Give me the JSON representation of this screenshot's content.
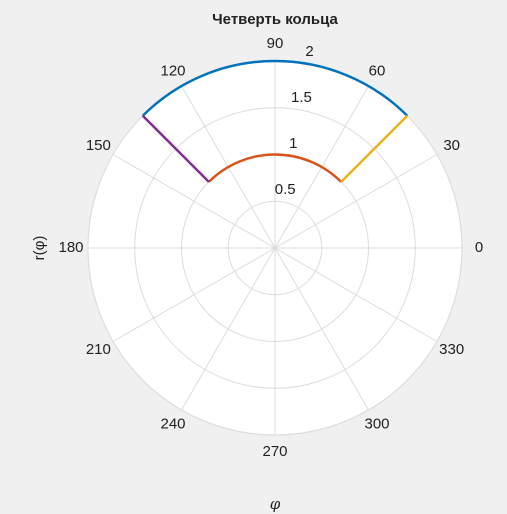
{
  "chart_data": {
    "type": "polar",
    "title": "Четверть кольца",
    "xlabel": "φ",
    "ylabel": "r(φ)",
    "thetalim": [
      0,
      360
    ],
    "thetaticks": [
      0,
      30,
      60,
      90,
      120,
      150,
      180,
      210,
      240,
      270,
      300,
      330
    ],
    "rlim": [
      0,
      2
    ],
    "rticks": [
      0.5,
      1,
      1.5,
      2
    ],
    "rtick_angle": 80,
    "grid": true,
    "series": [
      {
        "color": "#0072BD",
        "theta": [
          45,
          90,
          135
        ],
        "r": [
          2,
          2,
          2
        ]
      },
      {
        "color": "#D95319",
        "theta": [
          45,
          90,
          135
        ],
        "r": [
          1,
          1,
          1
        ]
      },
      {
        "color": "#EDB120",
        "theta": [
          45,
          45
        ],
        "r": [
          1,
          2
        ]
      },
      {
        "color": "#7E2F8E",
        "theta": [
          135,
          135
        ],
        "r": [
          1,
          2
        ]
      }
    ]
  }
}
